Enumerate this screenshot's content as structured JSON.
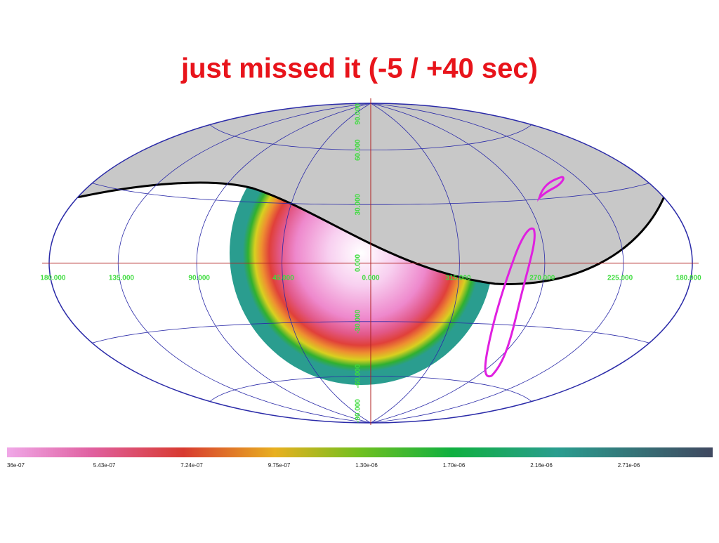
{
  "title": "just missed it  (-5 / +40 sec)",
  "map": {
    "lon_labels": [
      "180.000",
      "135.000",
      "90.000",
      "45.000",
      "0.000",
      "315.000",
      "270.000",
      "225.000",
      "180.000"
    ],
    "lat_labels": [
      "90.000",
      "60.000",
      "30.000",
      "0.000",
      "-30.000",
      "-60.000",
      "-90.000"
    ]
  },
  "colorbar": {
    "labels": [
      "36e-07",
      "5.43e-07",
      "7.24e-07",
      "9.75e-07",
      "1.30e-06",
      "1.70e-06",
      "2.16e-06",
      "2.71e-06"
    ]
  }
}
